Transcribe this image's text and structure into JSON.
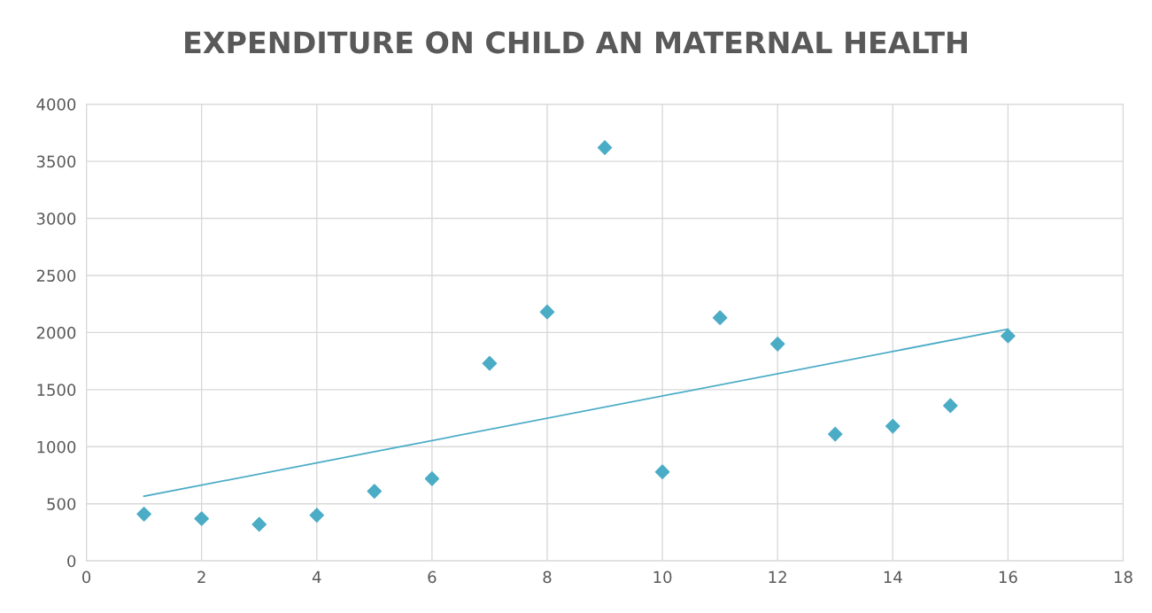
{
  "chart_data": {
    "type": "scatter",
    "title": "EXPENDITURE ON CHILD AN MATERNAL HEALTH",
    "series": [
      {
        "color": "#4bacc6",
        "marker": "diamond",
        "x": [
          1,
          2,
          3,
          4,
          5,
          6,
          7,
          8,
          9,
          10,
          11,
          12,
          13,
          14,
          15,
          16
        ],
        "values": [
          410,
          370,
          320,
          400,
          610,
          720,
          1730,
          2180,
          3620,
          780,
          2130,
          1900,
          1110,
          1180,
          1360,
          1970
        ]
      },
      {
        "type": "line",
        "color": "#4bacc6",
        "line_style": "solid",
        "marker": "none",
        "x": [
          1,
          16
        ],
        "values": [
          566,
          2030
        ]
      }
    ],
    "xlim": [
      0,
      18
    ],
    "xticks": [
      0,
      2,
      4,
      6,
      8,
      10,
      12,
      14,
      16,
      18
    ],
    "ylim": [
      0,
      4000
    ],
    "yticks": [
      0,
      500,
      1000,
      1500,
      2000,
      2500,
      3000,
      3500,
      4000
    ],
    "grid": true,
    "legend": false
  }
}
